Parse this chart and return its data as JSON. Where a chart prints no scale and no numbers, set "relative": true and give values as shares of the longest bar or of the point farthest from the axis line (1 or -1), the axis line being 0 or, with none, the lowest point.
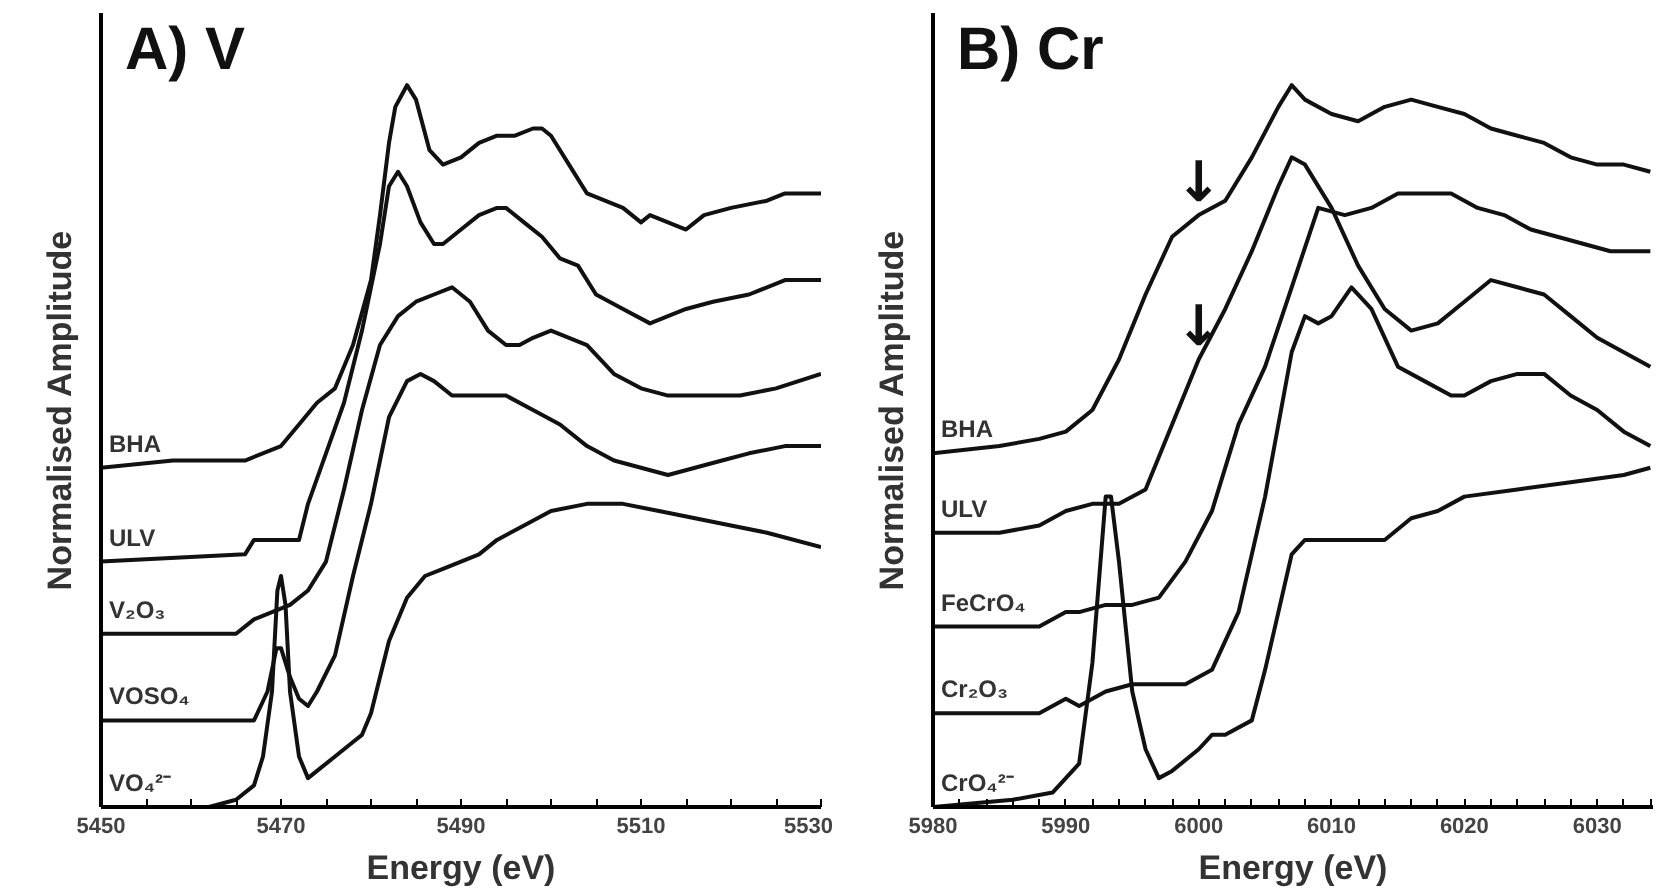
{
  "chart_data": [
    {
      "type": "line",
      "title": "A) V",
      "xlabel": "Energy (eV)",
      "ylabel": "Normalised Amplitude",
      "relative": true,
      "xlim": [
        5450,
        5530
      ],
      "xticks": [
        5450,
        {
          "value": 5455,
          "label": null
        },
        {
          "value": 5460,
          "label": null
        },
        {
          "value": 5465,
          "label": null
        },
        5470,
        {
          "value": 5475,
          "label": null
        },
        {
          "value": 5480,
          "label": null
        },
        {
          "value": 5485,
          "label": null
        },
        5490,
        {
          "value": 5495,
          "label": null
        },
        {
          "value": 5500,
          "label": null
        },
        {
          "value": 5505,
          "label": null
        },
        5510,
        {
          "value": 5515,
          "label": null
        },
        {
          "value": 5520,
          "label": null
        },
        {
          "value": 5525,
          "label": null
        },
        5530
      ],
      "grid": false,
      "marker": "none",
      "line_style": "solid",
      "series": [
        {
          "name": "BHA",
          "color": "#111111",
          "x": [
            5450,
            5458,
            5466,
            5470,
            5472,
            5474,
            5476,
            5478,
            5480,
            5481,
            5482,
            5482.7,
            5484,
            5485,
            5486.5,
            5488,
            5490,
            5492,
            5494,
            5496,
            5498,
            5499,
            5500,
            5502,
            5504,
            5506,
            5508,
            5510,
            5511,
            5513,
            5515,
            5517,
            5520,
            5524,
            5526,
            5530
          ],
          "values": [
            0.47,
            0.48,
            0.48,
            0.5,
            0.53,
            0.56,
            0.58,
            0.64,
            0.73,
            0.82,
            0.92,
            0.97,
            1.0,
            0.98,
            0.91,
            0.89,
            0.9,
            0.92,
            0.93,
            0.93,
            0.94,
            0.94,
            0.93,
            0.89,
            0.85,
            0.84,
            0.83,
            0.81,
            0.82,
            0.81,
            0.8,
            0.82,
            0.83,
            0.84,
            0.85,
            0.85
          ]
        },
        {
          "name": "ULV",
          "color": "#111111",
          "x": [
            5450,
            5466,
            5467,
            5470,
            5472,
            5473,
            5475,
            5477,
            5479,
            5481,
            5482,
            5483,
            5484,
            5485.5,
            5487,
            5488,
            5490,
            5492,
            5494,
            5495,
            5497,
            5499,
            5501,
            5503,
            5505,
            5508,
            5511,
            5515,
            5518,
            5522,
            5526,
            5530
          ],
          "values": [
            0.34,
            0.35,
            0.37,
            0.37,
            0.37,
            0.42,
            0.49,
            0.56,
            0.66,
            0.78,
            0.86,
            0.88,
            0.86,
            0.81,
            0.78,
            0.78,
            0.8,
            0.82,
            0.83,
            0.83,
            0.81,
            0.79,
            0.76,
            0.75,
            0.71,
            0.69,
            0.67,
            0.69,
            0.7,
            0.71,
            0.73,
            0.73
          ]
        },
        {
          "name": "V₂O₃",
          "color": "#111111",
          "x": [
            5450,
            5465,
            5467,
            5469,
            5471,
            5473,
            5475,
            5477,
            5479,
            5481,
            5483,
            5485,
            5487,
            5489,
            5491,
            5493,
            5495,
            5496.5,
            5498,
            5500,
            5502,
            5504,
            5507,
            5510,
            5513,
            5517,
            5521,
            5525,
            5530
          ],
          "values": [
            0.24,
            0.24,
            0.26,
            0.27,
            0.28,
            0.3,
            0.34,
            0.44,
            0.55,
            0.64,
            0.68,
            0.7,
            0.71,
            0.72,
            0.7,
            0.66,
            0.64,
            0.64,
            0.65,
            0.66,
            0.65,
            0.64,
            0.6,
            0.58,
            0.57,
            0.57,
            0.57,
            0.58,
            0.6
          ]
        },
        {
          "name": "VOSO₄",
          "color": "#111111",
          "x": [
            5450,
            5467,
            5468.5,
            5469.5,
            5470,
            5471,
            5472,
            5473,
            5474,
            5476,
            5478,
            5480,
            5482,
            5484,
            5485.5,
            5487,
            5489,
            5492,
            5495,
            5498,
            5501,
            5504,
            5507,
            5510,
            5513,
            5516,
            5519,
            5522,
            5526,
            5530
          ],
          "values": [
            0.12,
            0.12,
            0.16,
            0.22,
            0.22,
            0.18,
            0.15,
            0.14,
            0.16,
            0.21,
            0.32,
            0.42,
            0.54,
            0.59,
            0.6,
            0.59,
            0.57,
            0.57,
            0.57,
            0.55,
            0.53,
            0.5,
            0.48,
            0.47,
            0.46,
            0.47,
            0.48,
            0.49,
            0.5,
            0.5
          ]
        },
        {
          "name": "VO₄²⁻",
          "color": "#111111",
          "x": [
            5450,
            5462,
            5465,
            5467,
            5468,
            5469,
            5469.6,
            5470,
            5470.5,
            5471,
            5472,
            5473,
            5474,
            5476,
            5478,
            5479,
            5480,
            5481,
            5482,
            5484,
            5486,
            5488,
            5490,
            5492,
            5494,
            5497,
            5500,
            5504,
            5508,
            5512,
            5516,
            5520,
            5524,
            5530
          ],
          "values": [
            0.0,
            0.0,
            0.01,
            0.03,
            0.07,
            0.16,
            0.3,
            0.32,
            0.28,
            0.16,
            0.07,
            0.04,
            0.05,
            0.07,
            0.09,
            0.1,
            0.13,
            0.18,
            0.23,
            0.29,
            0.32,
            0.33,
            0.34,
            0.35,
            0.37,
            0.39,
            0.41,
            0.42,
            0.42,
            0.41,
            0.4,
            0.39,
            0.38,
            0.36
          ]
        }
      ]
    },
    {
      "type": "line",
      "title": "B) Cr",
      "xlabel": "Energy (eV)",
      "ylabel": "Normalised Amplitude",
      "relative": true,
      "xlim": [
        5980,
        6034.2
      ],
      "xticks": [
        5980,
        {
          "value": 5982,
          "label": null
        },
        {
          "value": 5984,
          "label": null
        },
        {
          "value": 5986,
          "label": null
        },
        {
          "value": 5988,
          "label": null
        },
        5990,
        {
          "value": 5992,
          "label": null
        },
        {
          "value": 5994,
          "label": null
        },
        {
          "value": 5996,
          "label": null
        },
        {
          "value": 5998,
          "label": null
        },
        6000,
        {
          "value": 6002,
          "label": null
        },
        {
          "value": 6004,
          "label": null
        },
        {
          "value": 6006,
          "label": null
        },
        {
          "value": 6008,
          "label": null
        },
        6010,
        {
          "value": 6012,
          "label": null
        },
        {
          "value": 6014,
          "label": null
        },
        {
          "value": 6016,
          "label": null
        },
        {
          "value": 6018,
          "label": null
        },
        6020,
        {
          "value": 6022,
          "label": null
        },
        {
          "value": 6024,
          "label": null
        },
        {
          "value": 6026,
          "label": null
        },
        {
          "value": 6028,
          "label": null
        },
        6030,
        {
          "value": 6032,
          "label": null
        },
        {
          "value": 6034,
          "label": null
        }
      ],
      "grid": false,
      "marker": "none",
      "line_style": "solid",
      "annotations": [
        {
          "text": "↓",
          "x": 6000,
          "y": 0.82
        },
        {
          "text": "↓",
          "x": 6000,
          "y": 0.62
        }
      ],
      "series": [
        {
          "name": "BHA",
          "color": "#111111",
          "x": [
            5980,
            5985,
            5988,
            5990,
            5992,
            5994,
            5996,
            5998,
            6000,
            6002,
            6004,
            6006,
            6007,
            6008,
            6010,
            6012,
            6014,
            6016,
            6018,
            6020,
            6022,
            6024,
            6026,
            6028,
            6030,
            6032,
            6034
          ],
          "values": [
            0.49,
            0.5,
            0.51,
            0.52,
            0.55,
            0.62,
            0.71,
            0.79,
            0.82,
            0.84,
            0.9,
            0.97,
            1.0,
            0.98,
            0.96,
            0.95,
            0.97,
            0.98,
            0.97,
            0.96,
            0.94,
            0.93,
            0.92,
            0.9,
            0.89,
            0.89,
            0.88
          ]
        },
        {
          "name": "ULV",
          "color": "#111111",
          "x": [
            5980,
            5985,
            5988,
            5990,
            5992,
            5994,
            5996,
            5998,
            6000,
            6002,
            6004,
            6006,
            6007,
            6008,
            6010,
            6012,
            6014,
            6016,
            6018,
            6020,
            6022,
            6024,
            6026,
            6028,
            6030,
            6032,
            6034
          ],
          "values": [
            0.38,
            0.38,
            0.39,
            0.41,
            0.42,
            0.42,
            0.44,
            0.53,
            0.62,
            0.69,
            0.77,
            0.86,
            0.9,
            0.89,
            0.83,
            0.75,
            0.69,
            0.66,
            0.67,
            0.7,
            0.73,
            0.72,
            0.71,
            0.68,
            0.65,
            0.63,
            0.61
          ]
        },
        {
          "name": "FeCrO₄",
          "color": "#111111",
          "x": [
            5980,
            5988,
            5990,
            5991,
            5993,
            5995,
            5997,
            5999,
            6001,
            6003,
            6005,
            6007,
            6009,
            6011,
            6013,
            6015,
            6017,
            6019,
            6021,
            6023,
            6025,
            6027,
            6029,
            6031,
            6034
          ],
          "values": [
            0.25,
            0.25,
            0.27,
            0.27,
            0.28,
            0.28,
            0.29,
            0.34,
            0.41,
            0.53,
            0.61,
            0.72,
            0.83,
            0.82,
            0.83,
            0.85,
            0.85,
            0.85,
            0.83,
            0.82,
            0.8,
            0.79,
            0.78,
            0.77,
            0.77
          ]
        },
        {
          "name": "Cr₂O₃",
          "color": "#111111",
          "x": [
            5980,
            5988,
            5990,
            5991,
            5993,
            5995,
            5997,
            5999,
            6001,
            6003,
            6005,
            6007,
            6008,
            6009,
            6010,
            6011.5,
            6013,
            6015,
            6017,
            6019,
            6020,
            6022,
            6024,
            6026,
            6028,
            6030,
            6032,
            6034
          ],
          "values": [
            0.13,
            0.13,
            0.15,
            0.14,
            0.16,
            0.17,
            0.17,
            0.17,
            0.19,
            0.27,
            0.43,
            0.63,
            0.68,
            0.67,
            0.68,
            0.72,
            0.69,
            0.61,
            0.59,
            0.57,
            0.57,
            0.59,
            0.6,
            0.6,
            0.57,
            0.55,
            0.52,
            0.5
          ]
        },
        {
          "name": "CrO₄²⁻",
          "color": "#111111",
          "x": [
            5980,
            5986,
            5989,
            5991,
            5992,
            5993,
            5993.4,
            5994,
            5995,
            5996,
            5997,
            5998,
            6000,
            6001,
            6002,
            6004,
            6005,
            6006,
            6007,
            6008,
            6010,
            6012,
            6014,
            6016,
            6018,
            6020,
            6024,
            6028,
            6032,
            6034
          ],
          "values": [
            0.0,
            0.01,
            0.02,
            0.06,
            0.2,
            0.43,
            0.43,
            0.34,
            0.16,
            0.08,
            0.04,
            0.05,
            0.08,
            0.1,
            0.1,
            0.12,
            0.19,
            0.27,
            0.35,
            0.37,
            0.37,
            0.37,
            0.37,
            0.4,
            0.41,
            0.43,
            0.44,
            0.45,
            0.46,
            0.47
          ]
        }
      ]
    }
  ]
}
